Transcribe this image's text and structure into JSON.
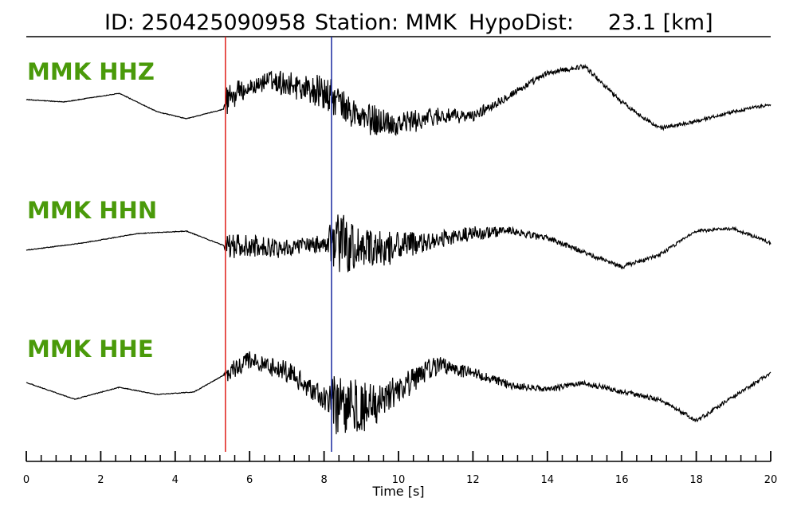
{
  "title": {
    "id_text": "ID: 250425090958",
    "station_text": "Station: MMK",
    "dist_text": "HypoDist:     23.1 [km]"
  },
  "colors": {
    "label": "#4a9a0a",
    "p_pick": "#e0201a",
    "s_pick": "#1a2aa0",
    "trace": "#000000"
  },
  "chart_data": {
    "type": "line",
    "x_range": [
      0,
      20
    ],
    "xlabel": "Time [s]",
    "x_major_ticks": [
      0,
      2,
      4,
      6,
      8,
      10,
      12,
      14,
      16,
      18,
      20
    ],
    "x_minor_step": 0.4,
    "picks": [
      {
        "phase": "P",
        "time": 5.35
      },
      {
        "phase": "S",
        "time": 8.2
      }
    ],
    "series": [
      {
        "name": "MMK HHZ",
        "values_description": "normalized amplitude, 0 = trace baseline",
        "envelope": [
          [
            0.0,
            0.05
          ],
          [
            1.0,
            0.0
          ],
          [
            2.5,
            0.18
          ],
          [
            3.5,
            -0.2
          ],
          [
            4.3,
            -0.35
          ],
          [
            5.3,
            -0.15
          ],
          [
            5.4,
            0.1
          ],
          [
            6.5,
            0.45
          ],
          [
            7.3,
            0.35
          ],
          [
            8.2,
            0.1
          ],
          [
            9.0,
            -0.35
          ],
          [
            10.0,
            -0.45
          ],
          [
            11.0,
            -0.3
          ],
          [
            12.0,
            -0.3
          ],
          [
            13.0,
            0.15
          ],
          [
            14.0,
            0.6
          ],
          [
            15.0,
            0.75
          ],
          [
            16.0,
            0.0
          ],
          [
            17.0,
            -0.55
          ],
          [
            18.0,
            -0.4
          ],
          [
            19.0,
            -0.2
          ],
          [
            20.0,
            -0.05
          ]
        ],
        "noise": [
          [
            0,
            0.01
          ],
          [
            5.3,
            0.01
          ],
          [
            5.4,
            0.5
          ],
          [
            6.0,
            0.2
          ],
          [
            8.2,
            0.5
          ],
          [
            10,
            0.35
          ],
          [
            12,
            0.15
          ],
          [
            14,
            0.07
          ],
          [
            20,
            0.04
          ]
        ]
      },
      {
        "name": "MMK HHN",
        "values_description": "normalized amplitude, 0 = trace baseline",
        "envelope": [
          [
            0.0,
            -0.1
          ],
          [
            1.5,
            0.05
          ],
          [
            3.0,
            0.25
          ],
          [
            4.3,
            0.3
          ],
          [
            5.3,
            0.0
          ],
          [
            5.4,
            0.0
          ],
          [
            7.0,
            -0.05
          ],
          [
            8.2,
            0.05
          ],
          [
            9.0,
            -0.1
          ],
          [
            10.5,
            0.05
          ],
          [
            12.0,
            0.25
          ],
          [
            13.0,
            0.3
          ],
          [
            14.0,
            0.15
          ],
          [
            15.0,
            -0.15
          ],
          [
            16.0,
            -0.45
          ],
          [
            17.0,
            -0.2
          ],
          [
            18.0,
            0.3
          ],
          [
            19.0,
            0.35
          ],
          [
            20.0,
            0.05
          ]
        ],
        "noise": [
          [
            0,
            0.01
          ],
          [
            5.3,
            0.01
          ],
          [
            5.4,
            0.35
          ],
          [
            8.1,
            0.2
          ],
          [
            8.2,
            1.0
          ],
          [
            9.0,
            0.55
          ],
          [
            10.5,
            0.3
          ],
          [
            13,
            0.12
          ],
          [
            15,
            0.06
          ],
          [
            20,
            0.04
          ]
        ]
      },
      {
        "name": "MMK HHE",
        "values_description": "normalized amplitude, 0 = trace baseline",
        "envelope": [
          [
            0.0,
            0.05
          ],
          [
            1.3,
            -0.3
          ],
          [
            2.5,
            -0.05
          ],
          [
            3.5,
            -0.2
          ],
          [
            4.5,
            -0.15
          ],
          [
            5.3,
            0.2
          ],
          [
            6.0,
            0.5
          ],
          [
            7.0,
            0.3
          ],
          [
            8.2,
            -0.4
          ],
          [
            9.0,
            -0.5
          ],
          [
            10.0,
            -0.1
          ],
          [
            11.0,
            0.4
          ],
          [
            12.0,
            0.25
          ],
          [
            13.0,
            0.0
          ],
          [
            14.0,
            -0.1
          ],
          [
            15.0,
            0.05
          ],
          [
            16.0,
            -0.15
          ],
          [
            17.0,
            -0.3
          ],
          [
            18.0,
            -0.75
          ],
          [
            19.0,
            -0.25
          ],
          [
            20.0,
            0.25
          ]
        ],
        "noise": [
          [
            0,
            0.01
          ],
          [
            5.3,
            0.01
          ],
          [
            5.4,
            0.25
          ],
          [
            8.1,
            0.3
          ],
          [
            8.2,
            0.9
          ],
          [
            9.0,
            0.7
          ],
          [
            10,
            0.4
          ],
          [
            12,
            0.15
          ],
          [
            14,
            0.08
          ],
          [
            20,
            0.05
          ]
        ]
      }
    ]
  }
}
